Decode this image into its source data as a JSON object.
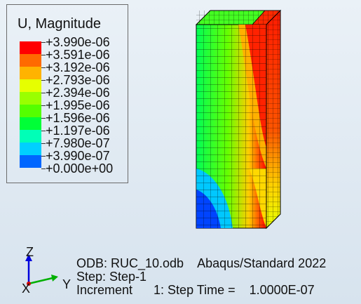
{
  "legend": {
    "title": "U, Magnitude",
    "entries": [
      {
        "value": "+3.990e-06",
        "color": "#ff0000"
      },
      {
        "value": "+3.591e-06",
        "color": "#ff6a00"
      },
      {
        "value": "+3.192e-06",
        "color": "#ffb300"
      },
      {
        "value": "+2.793e-06",
        "color": "#e6ff00"
      },
      {
        "value": "+2.394e-06",
        "color": "#9aff00"
      },
      {
        "value": "+1.995e-06",
        "color": "#55ff00"
      },
      {
        "value": "+1.596e-06",
        "color": "#00ff37"
      },
      {
        "value": "+1.197e-06",
        "color": "#00ffb7"
      },
      {
        "value": "+7.980e-07",
        "color": "#00d0ff"
      },
      {
        "value": "+3.990e-07",
        "color": "#0066ff"
      },
      {
        "value": "+0.000e+00",
        "color": "#0000ff"
      }
    ]
  },
  "triad": {
    "z": "Z",
    "y": "Y",
    "x": "X"
  },
  "info": {
    "line1": "ODB: RUC_10.odb    Abaqus/Standard 2022",
    "line2": "Step: Step-1",
    "line3": "Increment      1: Step Time =    1.0000E-07"
  }
}
